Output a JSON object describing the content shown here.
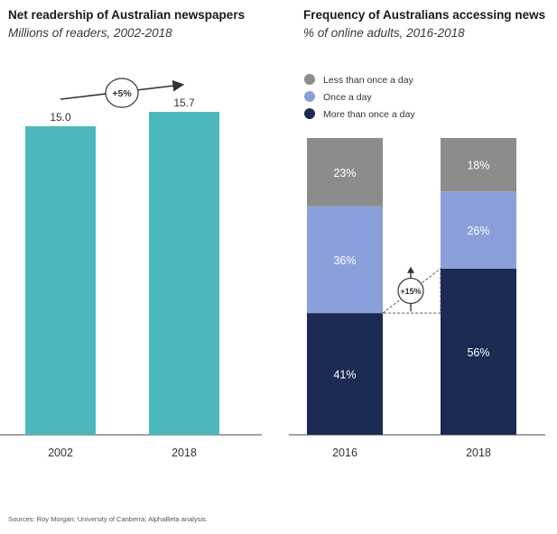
{
  "chart_data": [
    {
      "type": "bar",
      "title": "Net readership of Australian newspapers",
      "subtitle": "Millions of readers, 2002-2018",
      "categories": [
        "2002",
        "2018"
      ],
      "values": [
        15.0,
        15.7
      ],
      "value_labels": [
        "15.0",
        "15.7"
      ],
      "ylim": [
        0,
        17.5
      ],
      "color": "#4cb8be",
      "annotation": "+5%"
    },
    {
      "type": "bar",
      "stacked": true,
      "title": "Frequency of Australians accessing news",
      "subtitle": "% of online adults, 2016-2018",
      "categories": [
        "2016",
        "2018"
      ],
      "series": [
        {
          "name": "More than once a day",
          "values": [
            41,
            56
          ],
          "labels": [
            "41%",
            "56%"
          ],
          "color": "#1b2a52"
        },
        {
          "name": "Once a day",
          "values": [
            36,
            26
          ],
          "labels": [
            "36%",
            "26%"
          ],
          "color": "#8ba0db"
        },
        {
          "name": "Less than once a day",
          "values": [
            23,
            18
          ],
          "labels": [
            "23%",
            "18%"
          ],
          "color": "#8c8c8c"
        }
      ],
      "legend_order": [
        "Less than once a day",
        "Once a day",
        "More than once a day"
      ],
      "ylim": [
        0,
        100
      ],
      "annotation": "+15%"
    }
  ],
  "source": "Sources: Roy Morgan; University of Canberra; AlphaBeta analysis."
}
